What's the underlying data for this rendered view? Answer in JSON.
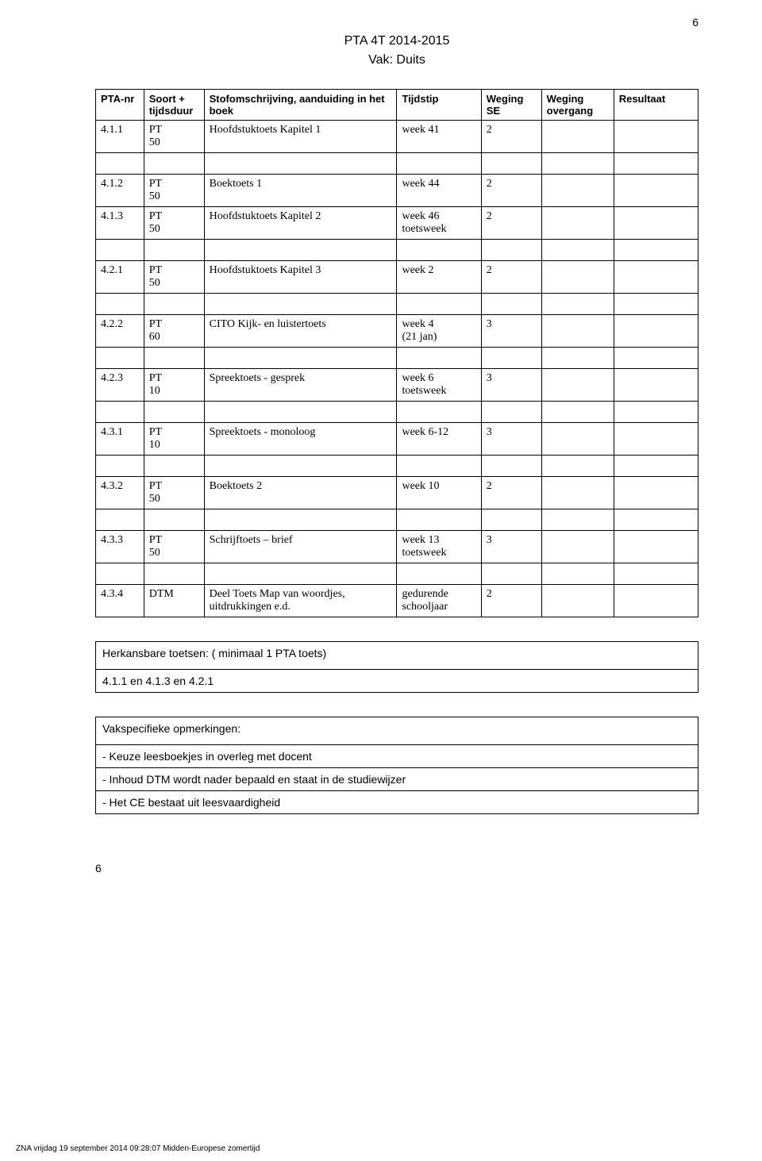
{
  "page_number_top": "6",
  "page_number_bottom": "6",
  "header": {
    "line1": "PTA 4T    2014-2015",
    "line2": "Vak: Duits"
  },
  "columns": {
    "pta": "PTA-nr",
    "soort": "Soort + tijdsduur",
    "stof": "Stofomschrijving, aanduiding in het boek",
    "tijdstip": "Tijdstip",
    "weging_se": "Weging SE",
    "weging_ov": "Weging overgang",
    "resultaat": "Resultaat"
  },
  "rows": [
    {
      "pta": "4.1.1",
      "soort": "PT\n50",
      "stof": "Hoofdstuktoets Kapitel 1",
      "tijdstip": "week  41",
      "wse": "2",
      "wov": "",
      "res": ""
    },
    {
      "spacer": true
    },
    {
      "pta": "4.1.2",
      "soort": "PT\n50",
      "stof": "Boektoets 1",
      "tijdstip": "week 44",
      "wse": "2",
      "wov": "",
      "res": ""
    },
    {
      "pta": "4.1.3",
      "soort": "PT\n50",
      "stof": "Hoofdstuktoets Kapitel 2",
      "tijdstip": "week 46\ntoetsweek",
      "wse": "2",
      "wov": "",
      "res": ""
    },
    {
      "spacer": true
    },
    {
      "pta": "4.2.1",
      "soort": "PT\n50",
      "stof": "Hoofdstuktoets Kapitel 3",
      "tijdstip": "week 2",
      "wse": "2",
      "wov": "",
      "res": ""
    },
    {
      "spacer": true
    },
    {
      "pta": "4.2.2",
      "soort": "PT\n60",
      "stof": "CITO Kijk- en luistertoets",
      "tijdstip": "week 4\n(21 jan)",
      "wse": "3",
      "wov": "",
      "res": ""
    },
    {
      "spacer": true
    },
    {
      "pta": "4.2.3",
      "soort": "PT\n10",
      "stof": "Spreektoets - gesprek",
      "tijdstip": "week 6\ntoetsweek",
      "wse": "3",
      "wov": "",
      "res": ""
    },
    {
      "spacer": true
    },
    {
      "pta": "4.3.1",
      "soort": "PT\n10",
      "stof": "Spreektoets - monoloog",
      "tijdstip": "week 6-12",
      "wse": "3",
      "wov": "",
      "res": ""
    },
    {
      "spacer": true
    },
    {
      "pta": "4.3.2",
      "soort": "PT\n50",
      "stof": "Boektoets 2",
      "tijdstip": "week 10",
      "wse": "2",
      "wov": "",
      "res": ""
    },
    {
      "spacer": true
    },
    {
      "pta": "4.3.3",
      "soort": "PT\n50",
      "stof": "Schrijftoets – brief",
      "tijdstip": "week 13\ntoetsweek",
      "wse": "3",
      "wov": "",
      "res": ""
    },
    {
      "spacer": true
    },
    {
      "pta": "4.3.4",
      "soort": "DTM",
      "stof": "Deel Toets Map van woordjes, uitdrukkingen e.d.",
      "tijdstip": "gedurende schooljaar",
      "wse": "2",
      "wov": "",
      "res": ""
    }
  ],
  "herkansbaar": {
    "title": "Herkansbare toetsen: ( minimaal 1 PTA toets)",
    "value": "4.1.1 en 4.1.3 en 4.2.1"
  },
  "vakspecifiek": {
    "title": "Vakspecifieke opmerkingen:",
    "items": [
      "- Keuze leesboekjes in overleg met docent",
      "- Inhoud DTM wordt nader bepaald en staat in de studiewijzer",
      "- Het CE bestaat uit leesvaardigheid"
    ]
  },
  "footer": "ZNA    vrijdag 19 september 2014 09:28:07 Midden-Europese zomertijd"
}
